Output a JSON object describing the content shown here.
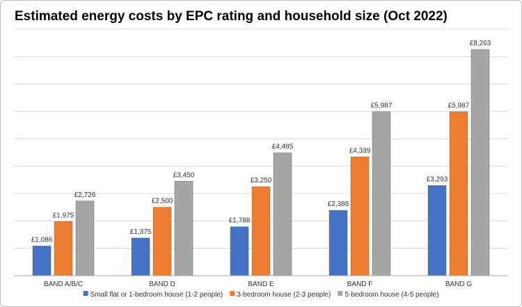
{
  "chart_data": {
    "type": "bar",
    "title": "Estimated energy costs by EPC rating and household size (Oct 2022)",
    "categories": [
      "BAND A/B/C",
      "BAND D",
      "BAND E",
      "BAND F",
      "BAND G"
    ],
    "series": [
      {
        "name": "Small flat or 1-bedroom house (1-2 people)",
        "color": "#4472c4",
        "values": [
          1086,
          1375,
          1788,
          2386,
          3293
        ],
        "labels": [
          "£1,086",
          "£1,375",
          "£1,788",
          "£2,386",
          "£3,293"
        ]
      },
      {
        "name": "3-bedroom house (2-3 people)",
        "color": "#ed7d31",
        "values": [
          1975,
          2500,
          3250,
          4339,
          5987
        ],
        "labels": [
          "£1,975",
          "£2,500",
          "£3,250",
          "£4,339",
          "£5,987"
        ]
      },
      {
        "name": "5-bedroom house (4-5 people)",
        "color": "#a5a5a5",
        "values": [
          2726,
          3450,
          4485,
          5987,
          8263
        ],
        "labels": [
          "£2,726",
          "£3,450",
          "£4,485",
          "£5,987",
          "£8,263"
        ]
      }
    ],
    "ylim": [
      0,
      9000
    ],
    "grid": true,
    "legend": "bottom"
  }
}
